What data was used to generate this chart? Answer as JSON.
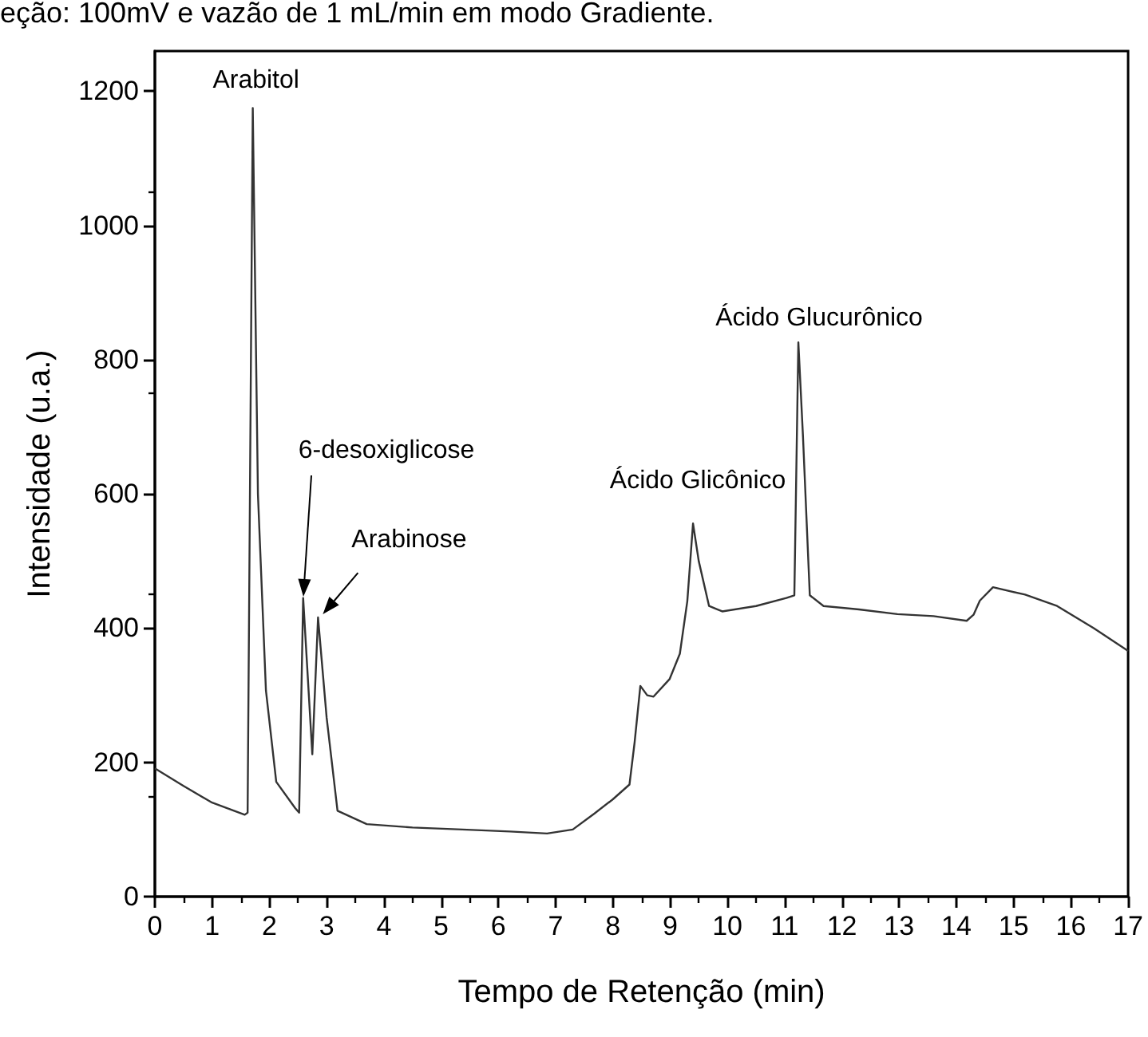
{
  "chart_data": {
    "type": "line",
    "title": "eção: 100mV e vazão de 1 mL/min em modo Gradiente.",
    "xlabel": "Tempo de Retenção (min)",
    "ylabel": "Intensidade (u.a.)",
    "xlim": [
      0,
      17
    ],
    "xticks": [
      0,
      1,
      2,
      3,
      4,
      5,
      6,
      7,
      8,
      9,
      10,
      11,
      12,
      13,
      14,
      15,
      16,
      17
    ],
    "ylim": [
      0,
      1260
    ],
    "yticks": [
      0,
      200,
      400,
      600,
      800,
      1000,
      1200
    ],
    "marker": "none",
    "line_style": "solid",
    "series": [
      {
        "color": "#333333",
        "x": [
          0,
          0.5,
          1.0,
          1.57,
          1.62,
          1.71,
          1.8,
          1.94,
          2.12,
          2.45,
          2.52,
          2.59,
          2.75,
          2.85,
          3.0,
          3.19,
          3.7,
          4.5,
          5.37,
          6.2,
          6.85,
          7.3,
          7.68,
          8.0,
          8.29,
          8.38,
          8.48,
          8.6,
          8.71,
          8.99,
          9.17,
          9.3,
          9.4,
          9.5,
          9.68,
          9.91,
          10.5,
          11.03,
          11.17,
          11.24,
          11.32,
          11.44,
          11.68,
          12.3,
          12.97,
          13.6,
          14.18,
          14.3,
          14.41,
          14.64,
          15.2,
          15.76,
          16.4,
          17
        ],
        "values": [
          191,
          165,
          140,
          122,
          125,
          1175,
          600,
          307,
          171,
          132,
          125,
          445,
          212,
          416,
          267,
          128,
          108,
          103,
          100,
          97,
          94,
          100,
          124,
          145,
          167,
          230,
          314,
          300,
          298,
          324,
          362,
          440,
          556,
          500,
          433,
          425,
          433,
          445,
          449,
          826,
          687,
          449,
          433,
          428,
          421,
          418,
          411,
          420,
          441,
          461,
          450,
          433,
          400,
          366
        ]
      }
    ],
    "annotations": [
      {
        "text": "Arabitol",
        "x": 1.71,
        "y": 1175
      },
      "6-desoxiglicose",
      {
        "text": "Arabinose",
        "x": 2.85,
        "y": 416
      },
      {
        "text": "Ácido Glicônico",
        "x": 9.4,
        "y": 556
      },
      {
        "text": "Ácido Glucurônico",
        "x": 11.24,
        "y": 826
      }
    ]
  }
}
